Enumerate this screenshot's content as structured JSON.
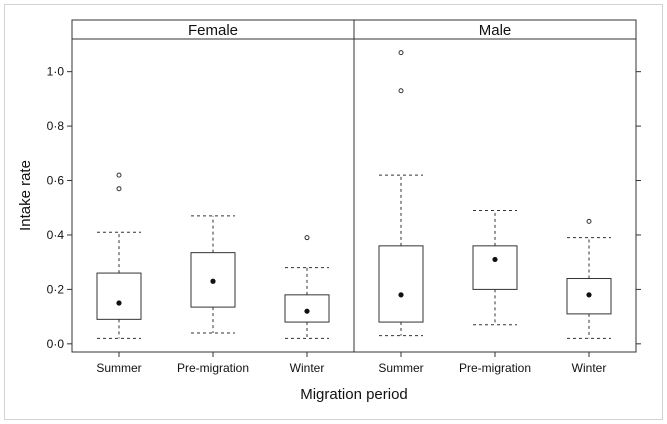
{
  "chart_data": {
    "type": "boxplot",
    "xlabel": "Migration period",
    "ylabel": "Intake rate",
    "ylim": [
      -0.03,
      1.12
    ],
    "yticks": [
      0.0,
      0.2,
      0.4,
      0.6,
      0.8,
      1.0
    ],
    "ytick_labels": [
      "0·0",
      "0·2",
      "0·4",
      "0·6",
      "0·8",
      "1·0"
    ],
    "categories": [
      "Summer",
      "Pre-migration",
      "Winter"
    ],
    "panels": [
      {
        "name": "Female",
        "boxes": [
          {
            "category": "Summer",
            "whisker_low": 0.02,
            "q1": 0.09,
            "median": 0.15,
            "q3": 0.26,
            "whisker_high": 0.41,
            "outliers": [
              0.57,
              0.62
            ]
          },
          {
            "category": "Pre-migration",
            "whisker_low": 0.04,
            "q1": 0.135,
            "median": 0.23,
            "q3": 0.335,
            "whisker_high": 0.47,
            "outliers": []
          },
          {
            "category": "Winter",
            "whisker_low": 0.02,
            "q1": 0.08,
            "median": 0.12,
            "q3": 0.18,
            "whisker_high": 0.28,
            "outliers": [
              0.39
            ]
          }
        ]
      },
      {
        "name": "Male",
        "boxes": [
          {
            "category": "Summer",
            "whisker_low": 0.03,
            "q1": 0.08,
            "median": 0.18,
            "q3": 0.36,
            "whisker_high": 0.62,
            "outliers": [
              0.93,
              1.07
            ]
          },
          {
            "category": "Pre-migration",
            "whisker_low": 0.07,
            "q1": 0.2,
            "median": 0.31,
            "q3": 0.36,
            "whisker_high": 0.49,
            "outliers": []
          },
          {
            "category": "Winter",
            "whisker_low": 0.02,
            "q1": 0.11,
            "median": 0.18,
            "q3": 0.24,
            "whisker_high": 0.39,
            "outliers": [
              0.45
            ]
          }
        ]
      }
    ]
  }
}
